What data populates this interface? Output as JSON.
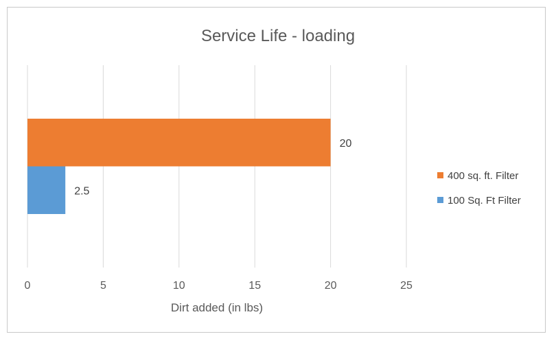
{
  "chart_data": {
    "type": "bar",
    "orientation": "horizontal",
    "title": "Service Life - loading",
    "xlabel": "Dirt added (in lbs)",
    "ylabel": "",
    "xlim": [
      0,
      25
    ],
    "xticks": [
      0,
      5,
      10,
      15,
      20,
      25
    ],
    "grid": true,
    "legend_position": "right",
    "series": [
      {
        "name": "400 sq. ft. Filter",
        "values": [
          20
        ],
        "labels": [
          "20"
        ],
        "color": "#ED7D31"
      },
      {
        "name": "100 Sq. Ft Filter",
        "values": [
          2.5
        ],
        "labels": [
          "2.5"
        ],
        "color": "#5B9BD5"
      }
    ]
  }
}
